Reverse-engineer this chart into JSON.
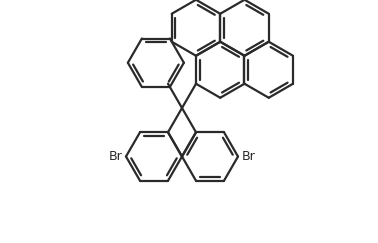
{
  "line_color": "#2a2a2a",
  "line_width": 1.6,
  "bg_color": "#ffffff",
  "br_label_1": "Br",
  "br_label_2": "Br",
  "figsize": [
    3.78,
    2.43
  ],
  "dpi": 100,
  "xlim": [
    0,
    378
  ],
  "ylim": [
    0,
    243
  ]
}
